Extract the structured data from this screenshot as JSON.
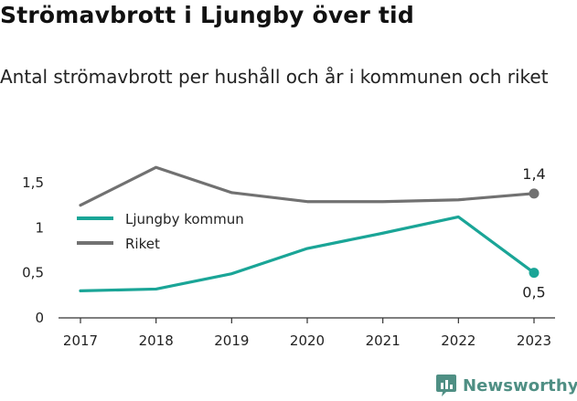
{
  "header": {
    "title": "Strömavbrott i Ljungby över tid",
    "subtitle": "Antal strömavbrott per hushåll och år i kommunen och riket"
  },
  "brand": {
    "name": "Newsworthy",
    "icon": "newsworthy-logo-icon",
    "color": "#4f8f84"
  },
  "chart_data": {
    "type": "line",
    "title": "",
    "xlabel": "",
    "ylabel": "",
    "x": [
      "2017",
      "2018",
      "2019",
      "2020",
      "2021",
      "2022",
      "2023"
    ],
    "ylim": [
      0,
      1.75
    ],
    "yticks": [
      0,
      0.5,
      1,
      1.5
    ],
    "ytick_labels": [
      "0",
      "0,5",
      "1",
      "1,5"
    ],
    "grid": false,
    "legend_position": "top-left",
    "series": [
      {
        "name": "Ljungby kommun",
        "color": "#1aa597",
        "values": [
          0.3,
          0.32,
          0.49,
          0.77,
          0.94,
          1.12,
          0.5
        ],
        "end_label": "0,5",
        "end_label_position": "below"
      },
      {
        "name": "Riket",
        "color": "#717171",
        "values": [
          1.25,
          1.67,
          1.39,
          1.29,
          1.29,
          1.31,
          1.38
        ],
        "end_label": "1,4",
        "end_label_position": "above"
      }
    ]
  }
}
